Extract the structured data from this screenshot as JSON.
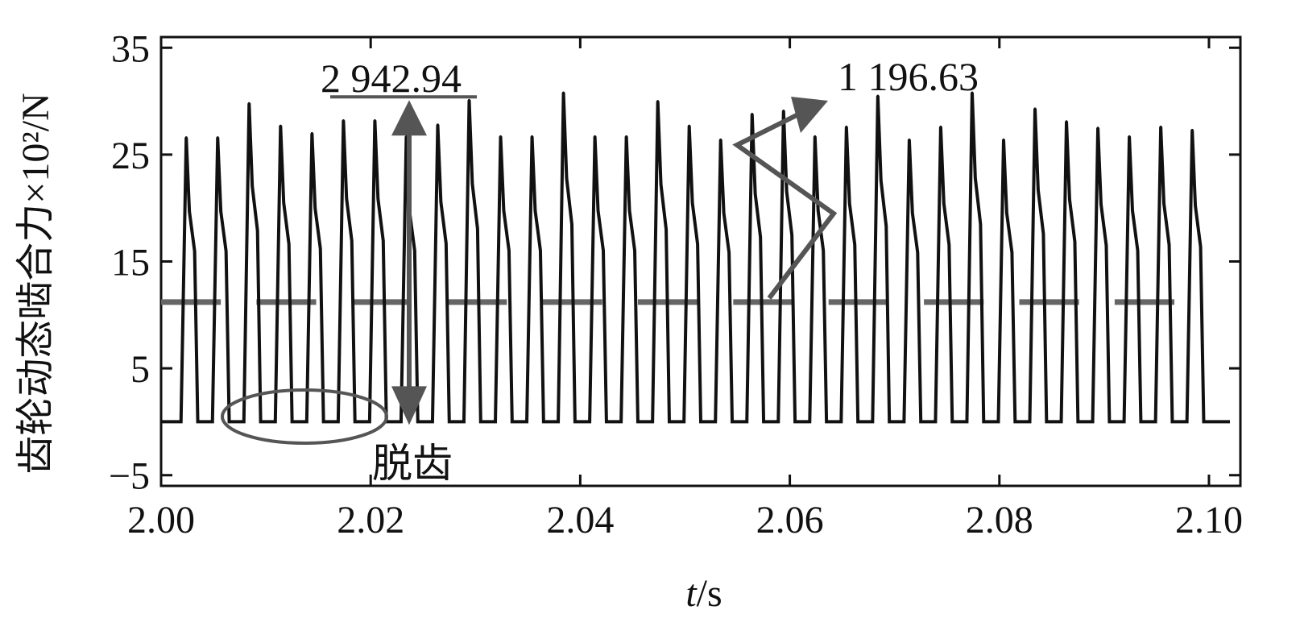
{
  "chart_data": {
    "type": "line",
    "xlabel": "t/s",
    "xlabel_var": "t",
    "xlabel_unit": "/s",
    "ylabel": "齿轮动态啮合力×10²/N",
    "xlim": [
      2.0,
      2.103
    ],
    "ylim": [
      -6,
      36
    ],
    "x_ticks": [
      "2.00",
      "2.02",
      "2.04",
      "2.06",
      "2.08",
      "2.10"
    ],
    "x_tick_values": [
      2.0,
      2.02,
      2.04,
      2.06,
      2.08,
      2.1
    ],
    "y_ticks": [
      "35",
      "25",
      "15",
      "5",
      "−5"
    ],
    "y_tick_values": [
      35,
      25,
      15,
      5,
      -5
    ],
    "grid": false,
    "series": [
      {
        "color": "#111111",
        "pulse_times": [
          2.0024,
          2.0054,
          2.0084,
          2.0114,
          2.0144,
          2.0174,
          2.0204,
          2.0234,
          2.0264,
          2.0294,
          2.0324,
          2.0354,
          2.0384,
          2.0414,
          2.0444,
          2.0474,
          2.0504,
          2.0534,
          2.0564,
          2.0594,
          2.0624,
          2.0654,
          2.0684,
          2.0714,
          2.0744,
          2.0774,
          2.0804,
          2.0834,
          2.0864,
          2.0894,
          2.0924,
          2.0954,
          2.0984
        ],
        "pulse_peaks": [
          26.6,
          26.6,
          29.8,
          27.7,
          27.0,
          28.2,
          28.2,
          26.7,
          27.8,
          30.1,
          26.7,
          26.7,
          30.8,
          26.7,
          26.7,
          30.0,
          27.7,
          26.4,
          28.8,
          29.1,
          26.7,
          27.6,
          30.5,
          26.4,
          27.6,
          30.8,
          26.4,
          29.3,
          28.1,
          27.5,
          26.7,
          27.6,
          27.3
        ],
        "baseline": 0.0,
        "end_x": 2.102
      }
    ],
    "segments_dashed": {
      "color": "#666666",
      "y": 11.2,
      "ranges": [
        [
          2.0,
          2.0057
        ],
        [
          2.0091,
          2.0148
        ],
        [
          2.0182,
          2.0239
        ],
        [
          2.0273,
          2.033
        ],
        [
          2.0364,
          2.0421
        ],
        [
          2.0455,
          2.0512
        ],
        [
          2.0546,
          2.0603
        ],
        [
          2.0637,
          2.0694
        ],
        [
          2.0728,
          2.0785
        ],
        [
          2.0819,
          2.0876
        ],
        [
          2.091,
          2.0967
        ]
      ]
    },
    "annotations": {
      "max_label": "2 942.94",
      "amp_label": "1 196.63",
      "disengage_label": "脱齿",
      "color": "#555555"
    }
  }
}
